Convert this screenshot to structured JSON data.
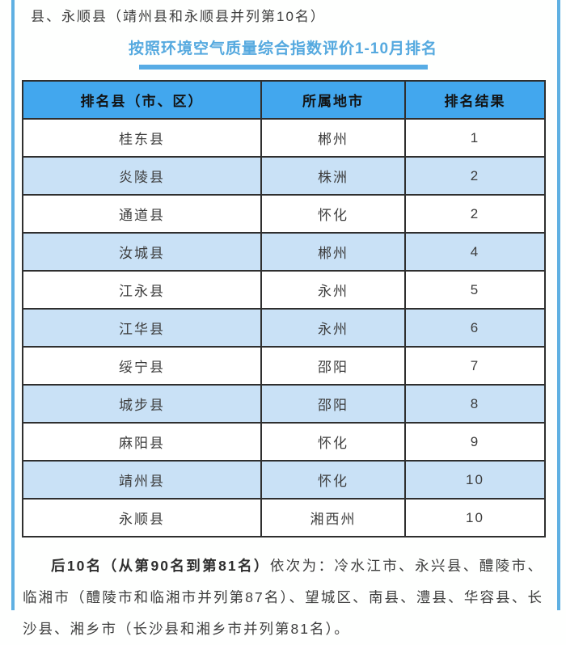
{
  "page": {
    "intro_text": "县、永顺县（靖州县和永顺县并列第10名）",
    "section_title": "按照环境空气质量综合指数评价1-10月排名",
    "footer_bold": "后10名（从第90名到第81名）",
    "footer_rest": "依次为：冷水江市、永兴县、醴陵市、临湘市（醴陵市和临湘市并列第87名）、望城区、南县、澧县、华容县、长沙县、湘乡市（长沙县和湘乡市并列第81名）。"
  },
  "table": {
    "headers": [
      "排名县（市、区）",
      "所属地市",
      "排名结果"
    ],
    "rows": [
      [
        "桂东县",
        "郴州",
        "1"
      ],
      [
        "炎陵县",
        "株洲",
        "2"
      ],
      [
        "通道县",
        "怀化",
        "2"
      ],
      [
        "汝城县",
        "郴州",
        "4"
      ],
      [
        "江永县",
        "永州",
        "5"
      ],
      [
        "江华县",
        "永州",
        "6"
      ],
      [
        "绥宁县",
        "邵阳",
        "7"
      ],
      [
        "城步县",
        "邵阳",
        "8"
      ],
      [
        "麻阳县",
        "怀化",
        "9"
      ],
      [
        "靖州县",
        "怀化",
        "10"
      ],
      [
        "永顺县",
        "湘西州",
        "10"
      ]
    ]
  },
  "colors": {
    "header_bg": "#42a7ee",
    "alt_row_bg": "#c9e1f6",
    "title_text": "#55a9df",
    "title_bar": "#57ace5",
    "frame_line": "#5fb0e2",
    "table_border": "#2f2f2f",
    "body_text": "#3d3d3d"
  }
}
